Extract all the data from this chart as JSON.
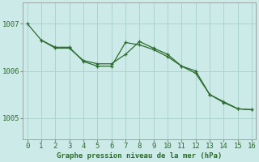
{
  "title": "Graphe pression niveau de la mer (hPa)",
  "background_color": "#cceae8",
  "grid_color": "#aad4d0",
  "line_color": "#2d6b2d",
  "xlim": [
    -0.3,
    16.3
  ],
  "ylim": [
    1004.55,
    1007.45
  ],
  "xticks": [
    0,
    1,
    2,
    3,
    4,
    5,
    6,
    7,
    8,
    9,
    10,
    11,
    12,
    13,
    14,
    15,
    16
  ],
  "yticks": [
    1005,
    1006,
    1007
  ],
  "line1_x": [
    0,
    1,
    2,
    3,
    4,
    5,
    6,
    7,
    8,
    9,
    10,
    11,
    12,
    13,
    14,
    15,
    16
  ],
  "line1_y": [
    1007.0,
    1006.65,
    1006.5,
    1006.5,
    1006.2,
    1006.1,
    1006.1,
    1006.6,
    1006.55,
    1006.45,
    1006.3,
    1006.1,
    1005.95,
    1005.5,
    1005.35,
    1005.2,
    1005.18
  ],
  "line2_x": [
    1,
    2,
    3,
    4,
    5,
    6,
    7,
    8,
    9,
    10,
    11,
    12,
    13,
    14,
    15,
    16
  ],
  "line2_y": [
    1006.65,
    1006.48,
    1006.48,
    1006.22,
    1006.15,
    1006.15,
    1006.35,
    1006.62,
    1006.48,
    1006.35,
    1006.1,
    1006.0,
    1005.5,
    1005.33,
    1005.2,
    1005.18
  ],
  "xtick_fontsize": 6.5,
  "ytick_fontsize": 6.5,
  "title_fontsize": 6.5,
  "linewidth": 0.9,
  "marker": "+",
  "markersize": 3.5,
  "markeredgewidth": 0.9
}
